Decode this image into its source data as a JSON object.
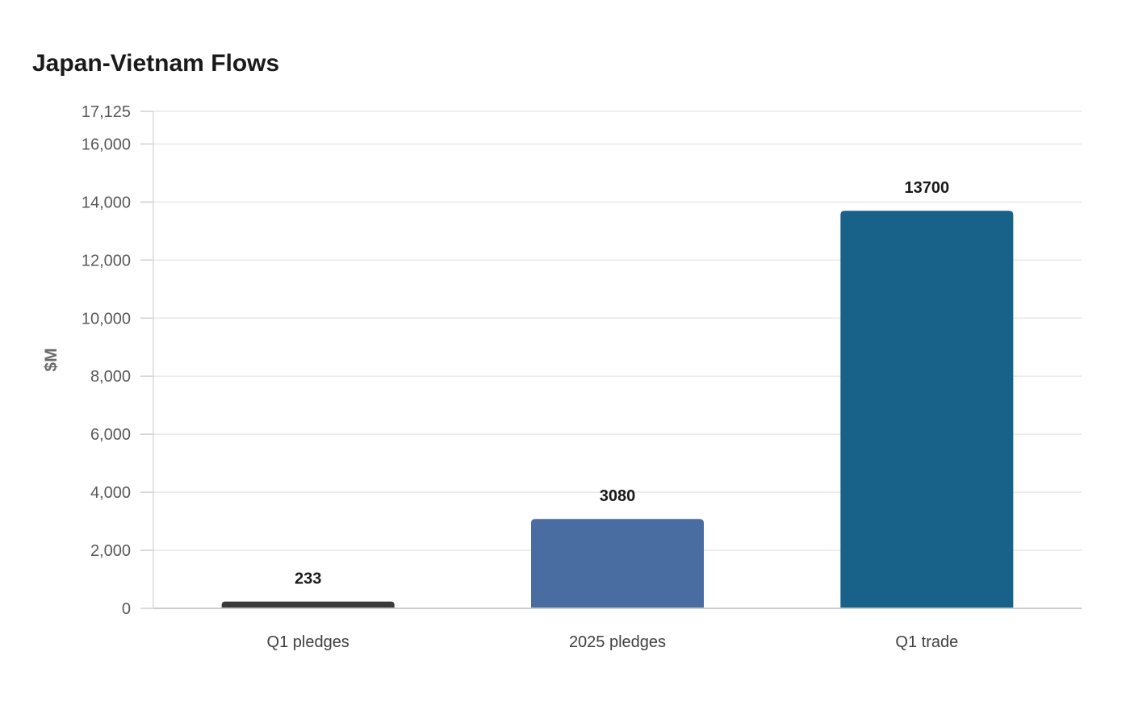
{
  "chart_data": {
    "type": "bar",
    "title": "Japan-Vietnam Flows",
    "xlabel": "",
    "ylabel": "$M",
    "categories": [
      "Q1 pledges",
      "2025 pledges",
      "Q1 trade"
    ],
    "values": [
      233,
      3080,
      13700
    ],
    "data_labels": [
      "233",
      "3080",
      "13700"
    ],
    "colors": [
      "#3a3a3a",
      "#4a6da1",
      "#186188"
    ],
    "ylim": [
      0,
      17125
    ],
    "yticks": [
      0,
      2000,
      4000,
      6000,
      8000,
      10000,
      12000,
      14000,
      16000,
      17125
    ],
    "ytick_labels": [
      "0",
      "2,000",
      "4,000",
      "6,000",
      "8,000",
      "10,000",
      "12,000",
      "14,000",
      "16,000",
      "17,125"
    ],
    "grid": true,
    "legend": "none"
  }
}
